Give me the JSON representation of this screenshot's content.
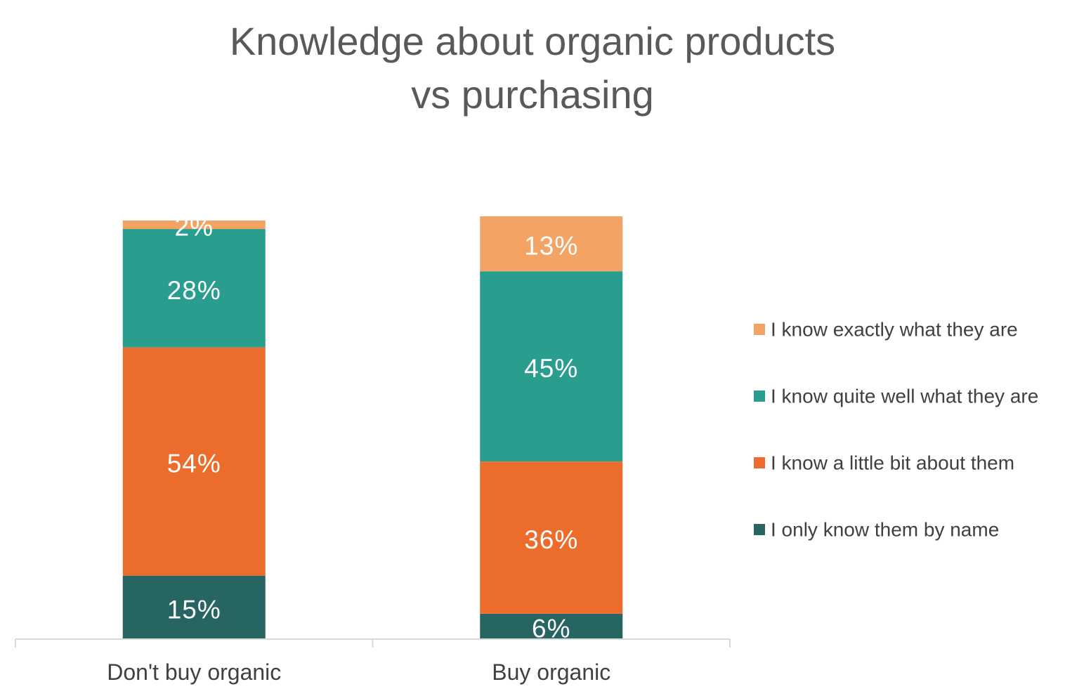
{
  "chart_data": {
    "type": "bar",
    "stacked": true,
    "title": [
      "Knowledge about organic products",
      "vs purchasing"
    ],
    "categories": [
      "Don't buy organic",
      "Buy organic"
    ],
    "series": [
      {
        "name": "I only know them by name",
        "values": [
          15,
          6
        ],
        "labels": [
          "15%",
          "6%"
        ],
        "color": "#276563"
      },
      {
        "name": "I know a little bit about them",
        "values": [
          54,
          36
        ],
        "labels": [
          "54%",
          "36%"
        ],
        "color": "#EC6C2B"
      },
      {
        "name": "I know quite well what they are",
        "values": [
          28,
          45
        ],
        "labels": [
          "28%",
          "45%"
        ],
        "color": "#2A9E8E"
      },
      {
        "name": "I know exactly what they are",
        "values": [
          2,
          13
        ],
        "labels": [
          "2%",
          "13%"
        ],
        "color": "#F3A363"
      }
    ],
    "legend_order": [
      3,
      2,
      1,
      0
    ],
    "ylim": [
      0,
      100
    ],
    "legend": "right",
    "grid": false,
    "axis_color": "#d9d9d9"
  }
}
